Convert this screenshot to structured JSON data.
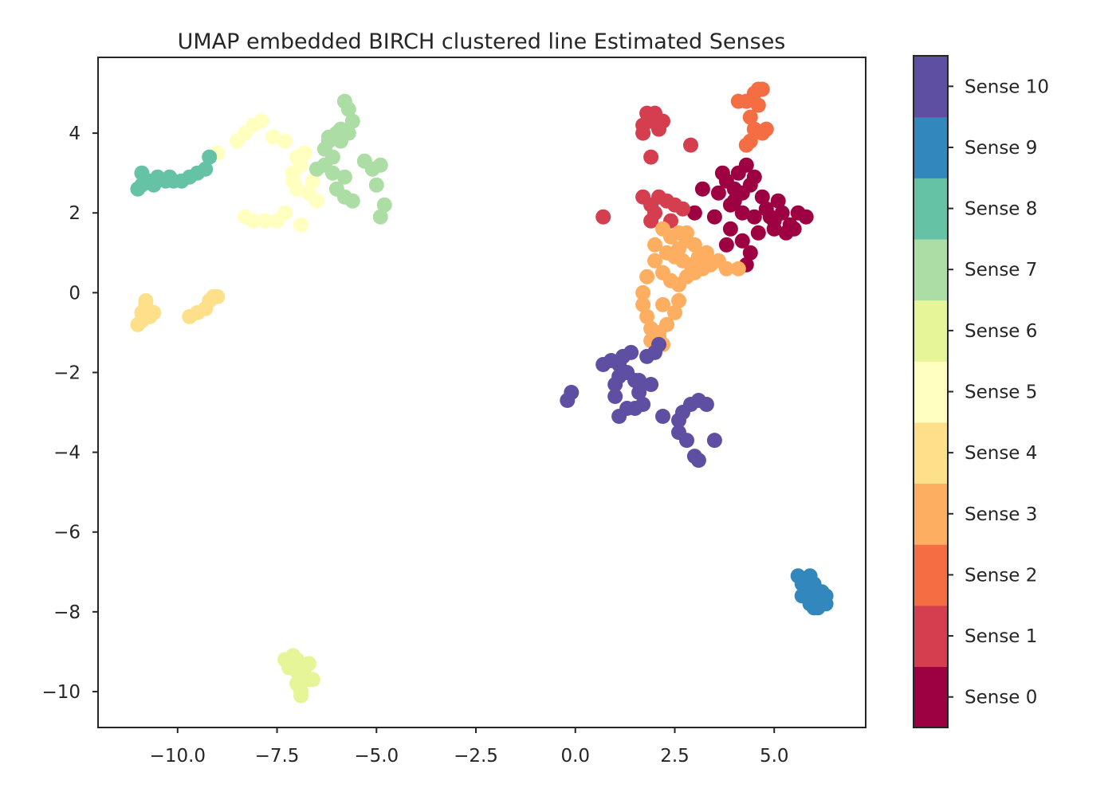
{
  "chart_data": {
    "type": "scatter",
    "title": "UMAP embedded BIRCH clustered line Estimated Senses",
    "xlabel": "",
    "ylabel": "",
    "xlim": [
      -12.0,
      7.3
    ],
    "ylim": [
      -10.9,
      5.9
    ],
    "x_ticks": [
      -10.0,
      -7.5,
      -5.0,
      -2.5,
      0.0,
      2.5,
      5.0
    ],
    "x_tick_labels": [
      "−10.0",
      "−7.5",
      "−5.0",
      "−2.5",
      "0.0",
      "2.5",
      "5.0"
    ],
    "y_ticks": [
      4,
      2,
      0,
      -2,
      -4,
      -6,
      -8,
      -10
    ],
    "y_tick_labels": [
      "4",
      "2",
      "0",
      "−2",
      "−4",
      "−6",
      "−8",
      "−10"
    ],
    "grid": false,
    "legend": "colorbar-right",
    "colorbar": {
      "labels": [
        "Sense 0",
        "Sense 1",
        "Sense 2",
        "Sense 3",
        "Sense 4",
        "Sense 5",
        "Sense 6",
        "Sense 7",
        "Sense 8",
        "Sense 9",
        "Sense 10"
      ],
      "colors": [
        "#9e0142",
        "#d53e4f",
        "#f46d43",
        "#fdae61",
        "#fee08b",
        "#ffffbf",
        "#e6f598",
        "#abdda4",
        "#66c2a5",
        "#3288bd",
        "#5e4fa2"
      ]
    },
    "series": [
      {
        "name": "Sense 0",
        "color": "#9e0142",
        "points": [
          [
            3.8,
            2.8
          ],
          [
            4.0,
            2.6
          ],
          [
            4.2,
            2.5
          ],
          [
            4.4,
            2.7
          ],
          [
            4.1,
            3.0
          ],
          [
            4.3,
            3.2
          ],
          [
            3.9,
            2.2
          ],
          [
            4.2,
            2.0
          ],
          [
            4.5,
            1.9
          ],
          [
            4.8,
            2.1
          ],
          [
            5.0,
            1.8
          ],
          [
            5.2,
            2.0
          ],
          [
            5.4,
            1.7
          ],
          [
            5.6,
            2.0
          ],
          [
            5.8,
            1.9
          ],
          [
            4.6,
            1.5
          ],
          [
            5.0,
            1.6
          ],
          [
            5.3,
            1.5
          ],
          [
            3.6,
            2.5
          ],
          [
            3.2,
            2.6
          ],
          [
            3.5,
            1.9
          ],
          [
            3.9,
            1.6
          ],
          [
            4.2,
            1.3
          ],
          [
            4.4,
            1.0
          ],
          [
            4.3,
            0.7
          ],
          [
            3.8,
            1.2
          ],
          [
            4.7,
            2.4
          ],
          [
            5.1,
            2.3
          ],
          [
            3.0,
            2.0
          ],
          [
            4.5,
            2.9
          ],
          [
            3.7,
            3.0
          ],
          [
            4.0,
            2.3
          ],
          [
            4.9,
            1.9
          ],
          [
            5.5,
            1.6
          ]
        ]
      },
      {
        "name": "Sense 1",
        "color": "#d53e4f",
        "points": [
          [
            1.7,
            4.2
          ],
          [
            1.9,
            4.3
          ],
          [
            2.1,
            4.1
          ],
          [
            1.8,
            4.5
          ],
          [
            2.0,
            4.5
          ],
          [
            1.7,
            4.0
          ],
          [
            2.2,
            4.3
          ],
          [
            1.9,
            3.4
          ],
          [
            2.9,
            3.7
          ],
          [
            0.7,
            1.9
          ],
          [
            1.7,
            2.4
          ],
          [
            1.9,
            2.2
          ],
          [
            2.1,
            2.4
          ],
          [
            2.3,
            2.3
          ],
          [
            2.5,
            2.2
          ],
          [
            2.0,
            2.0
          ],
          [
            2.4,
            1.8
          ],
          [
            2.7,
            2.1
          ],
          [
            1.9,
            1.8
          ]
        ]
      },
      {
        "name": "Sense 2",
        "color": "#f46d43",
        "points": [
          [
            4.6,
            5.1
          ],
          [
            4.5,
            5.0
          ],
          [
            4.3,
            4.8
          ],
          [
            4.7,
            5.1
          ],
          [
            4.6,
            4.7
          ],
          [
            4.4,
            4.4
          ],
          [
            4.5,
            4.1
          ],
          [
            4.7,
            4.0
          ],
          [
            4.4,
            3.8
          ],
          [
            4.3,
            3.7
          ],
          [
            4.1,
            4.8
          ],
          [
            4.8,
            4.1
          ]
        ]
      },
      {
        "name": "Sense 3",
        "color": "#fdae61",
        "points": [
          [
            2.2,
            1.6
          ],
          [
            2.4,
            1.4
          ],
          [
            2.6,
            1.5
          ],
          [
            2.8,
            1.3
          ],
          [
            3.0,
            1.2
          ],
          [
            2.3,
            1.0
          ],
          [
            2.5,
            0.9
          ],
          [
            2.7,
            0.8
          ],
          [
            2.9,
            0.7
          ],
          [
            3.1,
            0.9
          ],
          [
            2.0,
            0.8
          ],
          [
            2.2,
            0.5
          ],
          [
            2.4,
            0.3
          ],
          [
            2.6,
            0.2
          ],
          [
            2.8,
            0.4
          ],
          [
            3.0,
            0.5
          ],
          [
            1.8,
            0.4
          ],
          [
            1.7,
            0.0
          ],
          [
            1.7,
            -0.3
          ],
          [
            1.8,
            -0.6
          ],
          [
            1.9,
            -0.9
          ],
          [
            2.1,
            -1.0
          ],
          [
            2.3,
            -0.8
          ],
          [
            2.5,
            -0.5
          ],
          [
            2.6,
            -0.2
          ],
          [
            2.2,
            -0.3
          ],
          [
            1.9,
            -1.2
          ],
          [
            2.2,
            -1.3
          ],
          [
            2.1,
            -1.1
          ],
          [
            3.2,
            0.6
          ],
          [
            3.4,
            0.7
          ],
          [
            3.6,
            0.8
          ],
          [
            3.8,
            0.6
          ],
          [
            4.1,
            0.6
          ],
          [
            2.0,
            1.2
          ],
          [
            2.6,
            1.1
          ],
          [
            3.3,
            1.0
          ],
          [
            2.8,
            1.5
          ]
        ]
      },
      {
        "name": "Sense 4",
        "color": "#fee08b",
        "points": [
          [
            -11.0,
            -0.8
          ],
          [
            -10.9,
            -0.5
          ],
          [
            -10.8,
            -0.3
          ],
          [
            -10.7,
            -0.6
          ],
          [
            -10.8,
            -0.2
          ],
          [
            -10.9,
            -0.7
          ],
          [
            -10.6,
            -0.5
          ],
          [
            -9.7,
            -0.6
          ],
          [
            -9.5,
            -0.5
          ],
          [
            -9.3,
            -0.4
          ],
          [
            -9.2,
            -0.2
          ],
          [
            -9.1,
            -0.1
          ],
          [
            -9.0,
            -0.1
          ]
        ]
      },
      {
        "name": "Sense 5",
        "color": "#ffffbf",
        "points": [
          [
            -9.0,
            3.5
          ],
          [
            -8.5,
            3.8
          ],
          [
            -8.3,
            4.0
          ],
          [
            -8.1,
            4.2
          ],
          [
            -7.9,
            4.3
          ],
          [
            -7.6,
            3.9
          ],
          [
            -7.3,
            3.8
          ],
          [
            -7.0,
            3.4
          ],
          [
            -6.9,
            3.2
          ],
          [
            -7.1,
            3.0
          ],
          [
            -7.0,
            2.6
          ],
          [
            -6.7,
            2.5
          ],
          [
            -6.5,
            2.3
          ],
          [
            -7.3,
            2.0
          ],
          [
            -7.5,
            1.8
          ],
          [
            -7.8,
            1.8
          ],
          [
            -8.1,
            1.8
          ],
          [
            -8.3,
            1.9
          ],
          [
            -6.9,
            1.7
          ],
          [
            -7.1,
            2.8
          ],
          [
            -6.8,
            3.5
          ],
          [
            -6.6,
            2.8
          ]
        ]
      },
      {
        "name": "Sense 6",
        "color": "#e6f598",
        "points": [
          [
            -7.3,
            -9.2
          ],
          [
            -7.1,
            -9.3
          ],
          [
            -7.0,
            -9.5
          ],
          [
            -6.9,
            -9.6
          ],
          [
            -6.8,
            -9.4
          ],
          [
            -6.7,
            -9.7
          ],
          [
            -7.2,
            -9.4
          ],
          [
            -7.0,
            -9.8
          ],
          [
            -6.9,
            -10.0
          ],
          [
            -6.9,
            -10.1
          ],
          [
            -7.1,
            -9.1
          ],
          [
            -6.7,
            -9.3
          ],
          [
            -6.6,
            -9.7
          ],
          [
            -7.0,
            -9.2
          ]
        ]
      },
      {
        "name": "Sense 7",
        "color": "#abdda4",
        "points": [
          [
            -5.8,
            4.8
          ],
          [
            -5.7,
            4.6
          ],
          [
            -5.6,
            4.3
          ],
          [
            -5.7,
            4.0
          ],
          [
            -5.9,
            3.8
          ],
          [
            -6.0,
            4.0
          ],
          [
            -6.2,
            3.8
          ],
          [
            -6.3,
            3.6
          ],
          [
            -6.1,
            3.4
          ],
          [
            -6.3,
            3.2
          ],
          [
            -6.5,
            3.1
          ],
          [
            -6.1,
            3.0
          ],
          [
            -5.8,
            2.9
          ],
          [
            -6.0,
            2.6
          ],
          [
            -5.8,
            2.4
          ],
          [
            -5.6,
            2.3
          ],
          [
            -5.3,
            3.3
          ],
          [
            -5.1,
            3.1
          ],
          [
            -4.9,
            3.2
          ],
          [
            -5.0,
            2.7
          ],
          [
            -4.8,
            2.2
          ],
          [
            -4.9,
            1.9
          ],
          [
            -5.9,
            4.1
          ],
          [
            -6.2,
            3.9
          ]
        ]
      },
      {
        "name": "Sense 8",
        "color": "#66c2a5",
        "points": [
          [
            -11.0,
            2.6
          ],
          [
            -10.9,
            2.7
          ],
          [
            -10.7,
            2.8
          ],
          [
            -10.5,
            2.9
          ],
          [
            -10.3,
            2.8
          ],
          [
            -10.1,
            2.8
          ],
          [
            -9.9,
            2.8
          ],
          [
            -9.7,
            2.9
          ],
          [
            -9.5,
            3.0
          ],
          [
            -9.3,
            3.1
          ],
          [
            -10.9,
            3.0
          ],
          [
            -10.6,
            2.7
          ],
          [
            -9.2,
            3.4
          ],
          [
            -10.2,
            2.9
          ]
        ]
      },
      {
        "name": "Sense 9",
        "color": "#3288bd",
        "points": [
          [
            5.6,
            -7.1
          ],
          [
            5.7,
            -7.3
          ],
          [
            5.8,
            -7.4
          ],
          [
            5.9,
            -7.5
          ],
          [
            6.0,
            -7.6
          ],
          [
            6.1,
            -7.7
          ],
          [
            6.2,
            -7.8
          ],
          [
            6.3,
            -7.8
          ],
          [
            6.3,
            -7.6
          ],
          [
            6.2,
            -7.5
          ],
          [
            5.8,
            -7.2
          ],
          [
            5.9,
            -7.1
          ],
          [
            6.0,
            -7.3
          ],
          [
            6.1,
            -7.5
          ],
          [
            5.9,
            -7.8
          ],
          [
            6.0,
            -7.9
          ],
          [
            6.1,
            -7.9
          ],
          [
            5.7,
            -7.6
          ]
        ]
      },
      {
        "name": "Sense 10",
        "color": "#5e4fa2",
        "points": [
          [
            0.7,
            -1.8
          ],
          [
            0.9,
            -1.7
          ],
          [
            1.1,
            -1.8
          ],
          [
            1.2,
            -1.6
          ],
          [
            1.4,
            -1.5
          ],
          [
            1.1,
            -2.1
          ],
          [
            1.0,
            -2.3
          ],
          [
            1.3,
            -2.0
          ],
          [
            1.5,
            -2.2
          ],
          [
            1.6,
            -2.5
          ],
          [
            1.7,
            -2.8
          ],
          [
            1.5,
            -2.9
          ],
          [
            1.3,
            -2.9
          ],
          [
            1.1,
            -3.1
          ],
          [
            1.9,
            -2.3
          ],
          [
            1.8,
            -1.6
          ],
          [
            2.0,
            -1.5
          ],
          [
            2.1,
            -1.3
          ],
          [
            2.2,
            -3.1
          ],
          [
            2.6,
            -3.2
          ],
          [
            2.7,
            -3.0
          ],
          [
            2.9,
            -2.8
          ],
          [
            3.1,
            -2.7
          ],
          [
            3.3,
            -2.8
          ],
          [
            2.6,
            -3.5
          ],
          [
            2.8,
            -3.7
          ],
          [
            3.0,
            -4.1
          ],
          [
            3.1,
            -4.2
          ],
          [
            3.5,
            -3.7
          ],
          [
            -0.2,
            -2.7
          ],
          [
            -0.1,
            -2.5
          ],
          [
            1.0,
            -2.6
          ],
          [
            1.6,
            -2.2
          ]
        ]
      }
    ]
  }
}
